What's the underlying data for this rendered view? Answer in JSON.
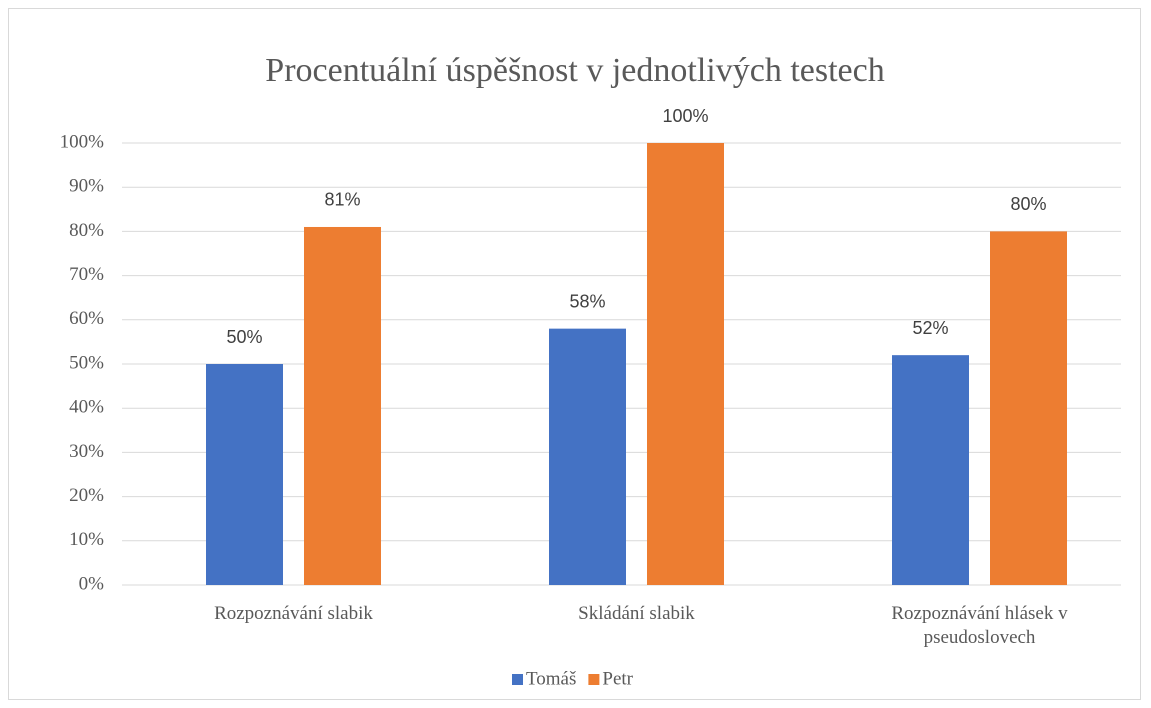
{
  "chart_data": {
    "type": "bar",
    "title": "Procentuální úspěšnost v jednotlivých testech",
    "categories": [
      "Rozpoznávání slabik",
      "Skládání slabik",
      "Rozpoznávání hlásek v pseudoslovech"
    ],
    "series": [
      {
        "name": "Tomáš",
        "color": "#4472c4",
        "values": [
          50,
          58,
          52
        ],
        "value_labels": [
          "50%",
          "58%",
          "52%"
        ]
      },
      {
        "name": "Petr",
        "color": "#ed7d31",
        "values": [
          81,
          100,
          80
        ],
        "value_labels": [
          "81%",
          "100%",
          "80%"
        ]
      }
    ],
    "ylim": [
      0,
      100
    ],
    "yticks": [
      {
        "value": 0,
        "label": "0%"
      },
      {
        "value": 10,
        "label": "10%"
      },
      {
        "value": 20,
        "label": "20%"
      },
      {
        "value": 30,
        "label": "30%"
      },
      {
        "value": 40,
        "label": "40%"
      },
      {
        "value": 50,
        "label": "50%"
      },
      {
        "value": 60,
        "label": "60%"
      },
      {
        "value": 70,
        "label": "70%"
      },
      {
        "value": 80,
        "label": "80%"
      },
      {
        "value": 90,
        "label": "90%"
      },
      {
        "value": 100,
        "label": "100%"
      }
    ],
    "grid": true,
    "legend": "bottom"
  }
}
